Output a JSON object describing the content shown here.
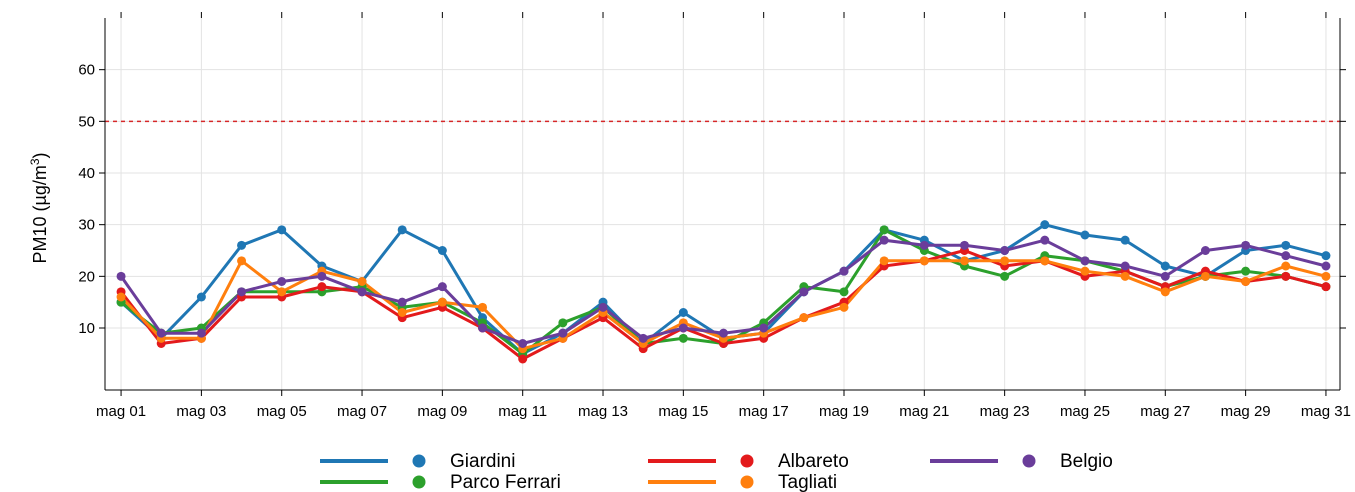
{
  "chart_data": {
    "type": "line",
    "title": "",
    "xlabel": "",
    "ylabel": "PM10 (µg/m³)",
    "ylabel_parts": {
      "main": "PM10 (",
      "unit_base": "µg/m",
      "unit_exp": "3",
      "close": ")"
    },
    "ylim": [
      -2,
      70
    ],
    "yticks": [
      10,
      20,
      30,
      40,
      50,
      60
    ],
    "xlim": [
      0.6,
      31.35
    ],
    "x": [
      1,
      2,
      3,
      4,
      5,
      6,
      7,
      8,
      9,
      10,
      11,
      12,
      13,
      14,
      15,
      16,
      17,
      18,
      19,
      20,
      21,
      22,
      23,
      24,
      25,
      26,
      27,
      28,
      29,
      30,
      31
    ],
    "xtick_positions": [
      1,
      3,
      5,
      7,
      9,
      11,
      13,
      15,
      17,
      19,
      21,
      23,
      25,
      27,
      29,
      31
    ],
    "xtick_labels": [
      "mag 01",
      "mag 03",
      "mag 05",
      "mag 07",
      "mag 09",
      "mag 11",
      "mag 13",
      "mag 15",
      "mag 17",
      "mag 19",
      "mag 21",
      "mag 23",
      "mag 25",
      "mag 27",
      "mag 29",
      "mag 31"
    ],
    "threshold": {
      "value": 50,
      "color": "#d62728",
      "style": "dashed"
    },
    "grid": true,
    "legend_position": "bottom",
    "series": [
      {
        "name": "Giardini",
        "color": "#1f77b4",
        "values": [
          15,
          8,
          16,
          26,
          29,
          22,
          19,
          29,
          25,
          12,
          5,
          9,
          15,
          7,
          13,
          8,
          9,
          17,
          21,
          29,
          27,
          23,
          25,
          30,
          28,
          27,
          22,
          20,
          25,
          26,
          24
        ]
      },
      {
        "name": "Parco Ferrari",
        "color": "#2ca02c",
        "values": [
          15,
          9,
          10,
          17,
          17,
          17,
          18,
          14,
          15,
          11,
          5,
          11,
          14,
          7,
          8,
          7,
          11,
          18,
          17,
          29,
          25,
          22,
          20,
          24,
          23,
          21,
          18,
          20,
          21,
          20,
          18
        ]
      },
      {
        "name": "Albareto",
        "color": "#e31a1c",
        "values": [
          17,
          7,
          8,
          16,
          16,
          18,
          17,
          12,
          14,
          10,
          4,
          8,
          12,
          6,
          10,
          7,
          8,
          12,
          15,
          22,
          23,
          25,
          22,
          23,
          20,
          21,
          18,
          21,
          19,
          20,
          18
        ]
      },
      {
        "name": "Tagliati",
        "color": "#ff7f0e",
        "values": [
          16,
          8,
          8,
          23,
          17,
          21,
          19,
          13,
          15,
          14,
          6,
          8,
          13,
          7,
          11,
          8,
          9,
          12,
          14,
          23,
          23,
          23,
          23,
          23,
          21,
          20,
          17,
          20,
          19,
          22,
          20
        ]
      },
      {
        "name": "Belgio",
        "color": "#6a3d9a",
        "values": [
          20,
          9,
          9,
          17,
          19,
          20,
          17,
          15,
          18,
          10,
          7,
          9,
          14,
          8,
          10,
          9,
          10,
          17,
          21,
          27,
          26,
          26,
          25,
          27,
          23,
          22,
          20,
          25,
          26,
          24,
          22
        ]
      }
    ],
    "legend_layout": [
      [
        "Giardini",
        "Albareto",
        "Belgio"
      ],
      [
        "Parco Ferrari",
        "Tagliati"
      ]
    ]
  }
}
